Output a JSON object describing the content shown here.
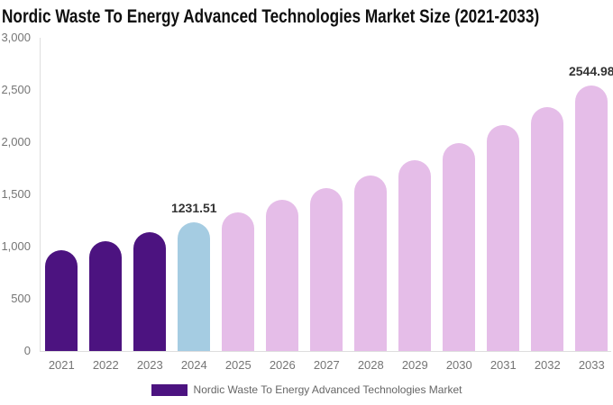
{
  "title": "Nordic Waste To Energy Advanced Technologies Market Size (2021-2033)",
  "legend": {
    "label": "Nordic Waste To Energy Advanced Technologies Market",
    "swatch_color": "#4c1380"
  },
  "colors": {
    "historical_bar": "#4c1380",
    "current_bar": "#a5cce2",
    "forecast_bar": "#e5bde8",
    "axis_line": "#dedede",
    "axis_text": "#757575",
    "value_label_text": "#333333",
    "title_text": "#0f0f0f",
    "legend_text": "#666666"
  },
  "chart_data": {
    "type": "bar",
    "title": "Nordic Waste To Energy Advanced Technologies Market Size (2021-2033)",
    "categories": [
      "2021",
      "2022",
      "2023",
      "2024",
      "2025",
      "2026",
      "2027",
      "2028",
      "2029",
      "2030",
      "2031",
      "2032",
      "2033"
    ],
    "values": [
      965,
      1050,
      1140,
      1231.51,
      1330,
      1445,
      1560,
      1685,
      1830,
      1990,
      2160,
      2335,
      2544.98
    ],
    "bar_colors": [
      "#4c1380",
      "#4c1380",
      "#4c1380",
      "#a5cce2",
      "#e5bde8",
      "#e5bde8",
      "#e5bde8",
      "#e5bde8",
      "#e5bde8",
      "#e5bde8",
      "#e5bde8",
      "#e5bde8",
      "#e5bde8"
    ],
    "point_labels": {
      "2024": "1231.51",
      "2033": "2544.98"
    },
    "xlabel": "",
    "ylabel": "",
    "ylim": [
      0,
      3000
    ],
    "y_ticks": [
      {
        "value": 0,
        "label": "0"
      },
      {
        "value": 500,
        "label": "500"
      },
      {
        "value": 1000,
        "label": "1,000"
      },
      {
        "value": 1500,
        "label": "1,500"
      },
      {
        "value": 2000,
        "label": "2,000"
      },
      {
        "value": 2500,
        "label": "2,500"
      },
      {
        "value": 3000,
        "label": "3,000"
      }
    ],
    "grid": false,
    "legend_position": "bottom",
    "legend_entries": [
      "Nordic Waste To Energy Advanced Technologies Market"
    ]
  }
}
